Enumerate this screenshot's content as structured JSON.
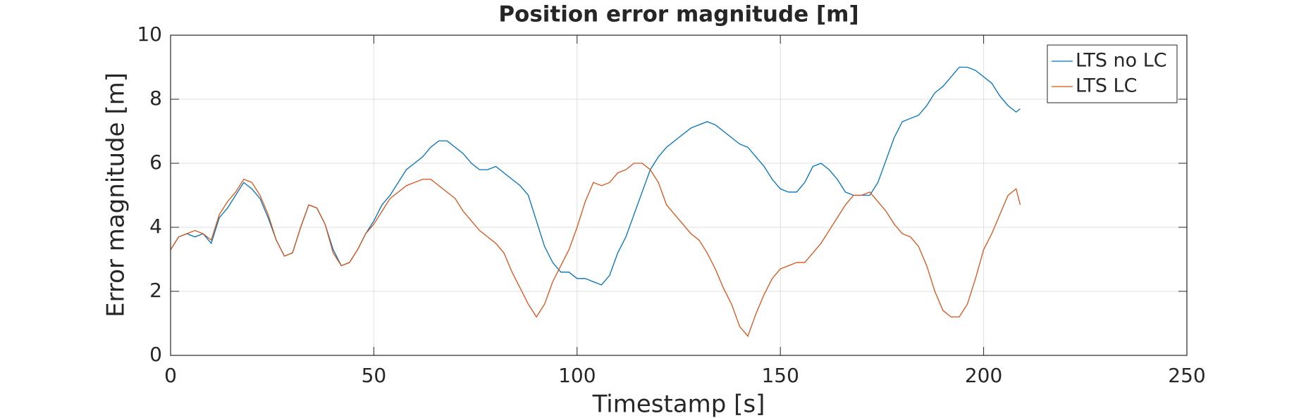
{
  "chart_data": {
    "type": "line",
    "title": "Position error magnitude [m]",
    "x_label": "Timestamp [s]",
    "y_label": "Error magnitude [m]",
    "x": [
      0,
      2,
      4,
      6,
      8,
      10,
      12,
      14,
      16,
      18,
      20,
      22,
      24,
      26,
      28,
      30,
      32,
      34,
      36,
      38,
      40,
      42,
      44,
      46,
      48,
      50,
      52,
      54,
      56,
      58,
      60,
      62,
      64,
      66,
      68,
      70,
      72,
      74,
      76,
      78,
      80,
      82,
      84,
      86,
      88,
      90,
      92,
      94,
      96,
      98,
      100,
      102,
      104,
      106,
      108,
      110,
      112,
      114,
      116,
      118,
      120,
      122,
      124,
      126,
      128,
      130,
      132,
      134,
      136,
      138,
      140,
      142,
      144,
      146,
      148,
      150,
      152,
      154,
      156,
      158,
      160,
      162,
      164,
      166,
      168,
      170,
      172,
      174,
      176,
      178,
      180,
      182,
      184,
      186,
      188,
      190,
      192,
      194,
      196,
      198,
      200,
      202,
      204,
      206,
      208,
      209
    ],
    "series": [
      {
        "name": "LTS no LC",
        "color": "#0072bd",
        "values": [
          3.3,
          3.7,
          3.8,
          3.7,
          3.8,
          3.5,
          4.3,
          4.6,
          5.0,
          5.4,
          5.2,
          4.9,
          4.3,
          3.6,
          3.1,
          3.2,
          4.0,
          4.7,
          4.6,
          4.1,
          3.3,
          2.8,
          2.9,
          3.3,
          3.8,
          4.2,
          4.7,
          5.0,
          5.4,
          5.8,
          6.0,
          6.2,
          6.5,
          6.7,
          6.7,
          6.5,
          6.3,
          6.0,
          5.8,
          5.8,
          5.9,
          5.7,
          5.5,
          5.3,
          5.0,
          4.2,
          3.4,
          2.9,
          2.6,
          2.6,
          2.4,
          2.4,
          2.3,
          2.2,
          2.5,
          3.2,
          3.7,
          4.4,
          5.1,
          5.8,
          6.2,
          6.5,
          6.7,
          6.9,
          7.1,
          7.2,
          7.3,
          7.2,
          7.0,
          6.8,
          6.6,
          6.5,
          6.2,
          5.9,
          5.5,
          5.2,
          5.1,
          5.1,
          5.4,
          5.9,
          6.0,
          5.8,
          5.5,
          5.1,
          5.0,
          5.0,
          5.0,
          5.4,
          6.1,
          6.8,
          7.3,
          7.4,
          7.5,
          7.8,
          8.2,
          8.4,
          8.7,
          9.0,
          9.0,
          8.9,
          8.7,
          8.5,
          8.1,
          7.8,
          7.6,
          7.7
        ]
      },
      {
        "name": "LTS LC",
        "color": "#d95319",
        "values": [
          3.3,
          3.7,
          3.8,
          3.9,
          3.8,
          3.6,
          4.4,
          4.8,
          5.1,
          5.5,
          5.4,
          5.0,
          4.4,
          3.6,
          3.1,
          3.2,
          4.0,
          4.7,
          4.6,
          4.1,
          3.2,
          2.8,
          2.9,
          3.3,
          3.8,
          4.1,
          4.5,
          4.9,
          5.1,
          5.3,
          5.4,
          5.5,
          5.5,
          5.3,
          5.1,
          4.9,
          4.5,
          4.2,
          3.9,
          3.7,
          3.5,
          3.2,
          2.6,
          2.1,
          1.6,
          1.2,
          1.6,
          2.3,
          2.8,
          3.3,
          4.0,
          4.8,
          5.4,
          5.3,
          5.4,
          5.7,
          5.8,
          6.0,
          6.0,
          5.8,
          5.4,
          4.7,
          4.4,
          4.1,
          3.8,
          3.6,
          3.2,
          2.7,
          2.1,
          1.6,
          0.9,
          0.6,
          1.3,
          1.9,
          2.4,
          2.7,
          2.8,
          2.9,
          2.9,
          3.2,
          3.5,
          3.9,
          4.3,
          4.7,
          5.0,
          5.0,
          5.1,
          4.8,
          4.5,
          4.1,
          3.8,
          3.7,
          3.4,
          2.8,
          2.0,
          1.4,
          1.2,
          1.2,
          1.6,
          2.4,
          3.3,
          3.8,
          4.4,
          5.0,
          5.2,
          4.7
        ]
      }
    ],
    "xlim": [
      0,
      250
    ],
    "xticks": [
      0,
      50,
      100,
      150,
      200,
      250
    ],
    "ylim": [
      0,
      10
    ],
    "yticks": [
      0,
      2,
      4,
      6,
      8,
      10
    ],
    "grid": true,
    "legend": "northeast"
  }
}
